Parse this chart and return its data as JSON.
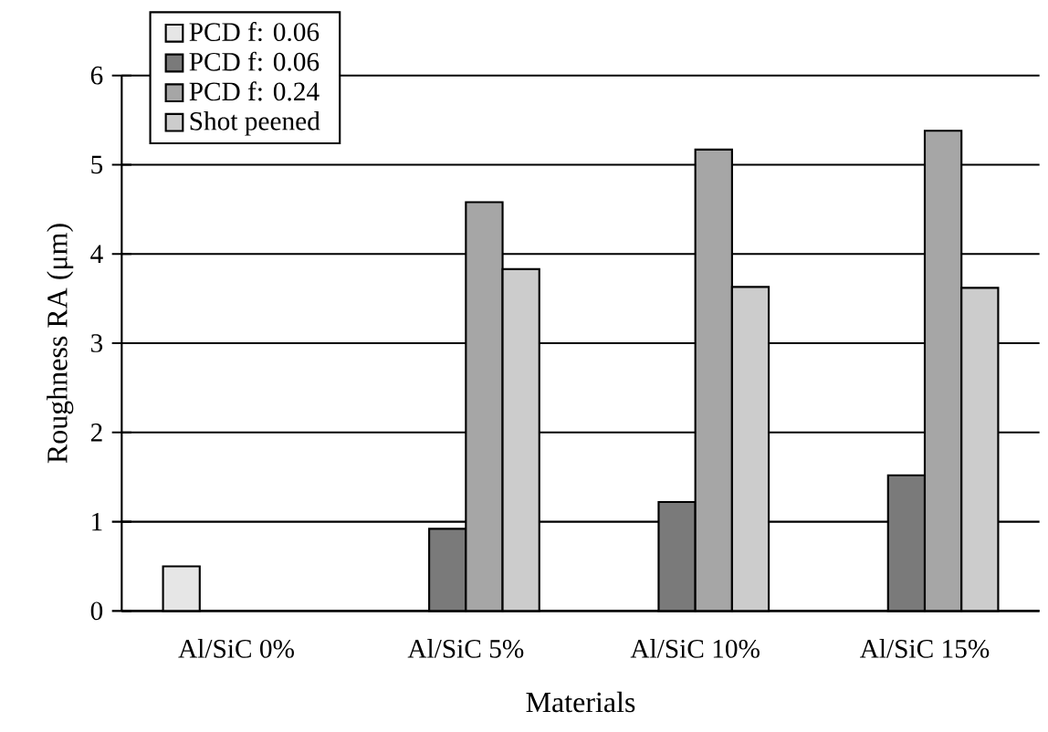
{
  "chart_data": {
    "type": "bar",
    "xlabel": "Materials",
    "ylabel": "Roughness RA (μm)",
    "categories": [
      "Al/SiC 0%",
      "Al/SiC 5%",
      "Al/SiC 10%",
      "Al/SiC 15%"
    ],
    "series": [
      {
        "name": "PCD f: 0.06",
        "color": "#e6e6e6",
        "values": [
          0.5,
          null,
          null,
          null
        ]
      },
      {
        "name": "PCD f: 0.06",
        "color": "#7a7a7a",
        "values": [
          null,
          0.92,
          1.22,
          1.52
        ]
      },
      {
        "name": "PCD f: 0.24",
        "color": "#a6a6a6",
        "values": [
          null,
          4.58,
          5.17,
          5.38
        ]
      },
      {
        "name": "Shot peened",
        "color": "#cccccc",
        "values": [
          null,
          3.83,
          3.63,
          3.62
        ]
      }
    ],
    "ylim": [
      0,
      6
    ],
    "yticks": [
      0,
      1,
      2,
      3,
      4,
      5,
      6
    ],
    "grid": "y",
    "legend": "top left"
  }
}
